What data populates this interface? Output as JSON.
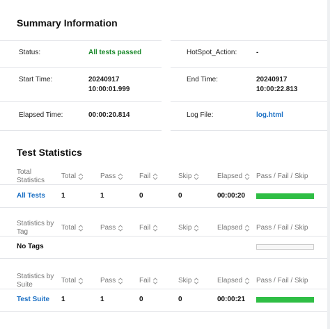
{
  "summary": {
    "title": "Summary Information",
    "fields": [
      {
        "label": "Status:",
        "value": [
          "All tests passed"
        ]
      },
      {
        "label": "HotSpot_Action:",
        "value": [
          "-"
        ]
      },
      {
        "label": "Start Time:",
        "value": [
          "20240917",
          "10:00:01.999"
        ]
      },
      {
        "label": "End Time:",
        "value": [
          "20240917",
          "10:00:22.813"
        ]
      },
      {
        "label": "Elapsed Time:",
        "value": [
          "00:00:20.814"
        ]
      },
      {
        "label": "Log File:",
        "value": [
          "log.html"
        ]
      }
    ]
  },
  "statistics": {
    "title": "Test Statistics",
    "columns": [
      "Total",
      "Pass",
      "Fail",
      "Skip",
      "Elapsed",
      "Pass / Fail / Skip"
    ],
    "tables": [
      {
        "header": [
          "Total",
          "Statistics"
        ],
        "rows": [
          {
            "name": "All Tests",
            "total": 1,
            "pass": 1,
            "fail": 0,
            "skip": 0,
            "elapsed": "00:00:20"
          }
        ]
      },
      {
        "header": [
          "Statistics by",
          "Tag"
        ],
        "rows": [
          {
            "name": "No Tags"
          }
        ]
      },
      {
        "header": [
          "Statistics by",
          "Suite"
        ],
        "rows": [
          {
            "name": "Test Suite",
            "total": 1,
            "pass": 1,
            "fail": 0,
            "skip": 0,
            "elapsed": "00:00:21"
          }
        ]
      }
    ]
  }
}
